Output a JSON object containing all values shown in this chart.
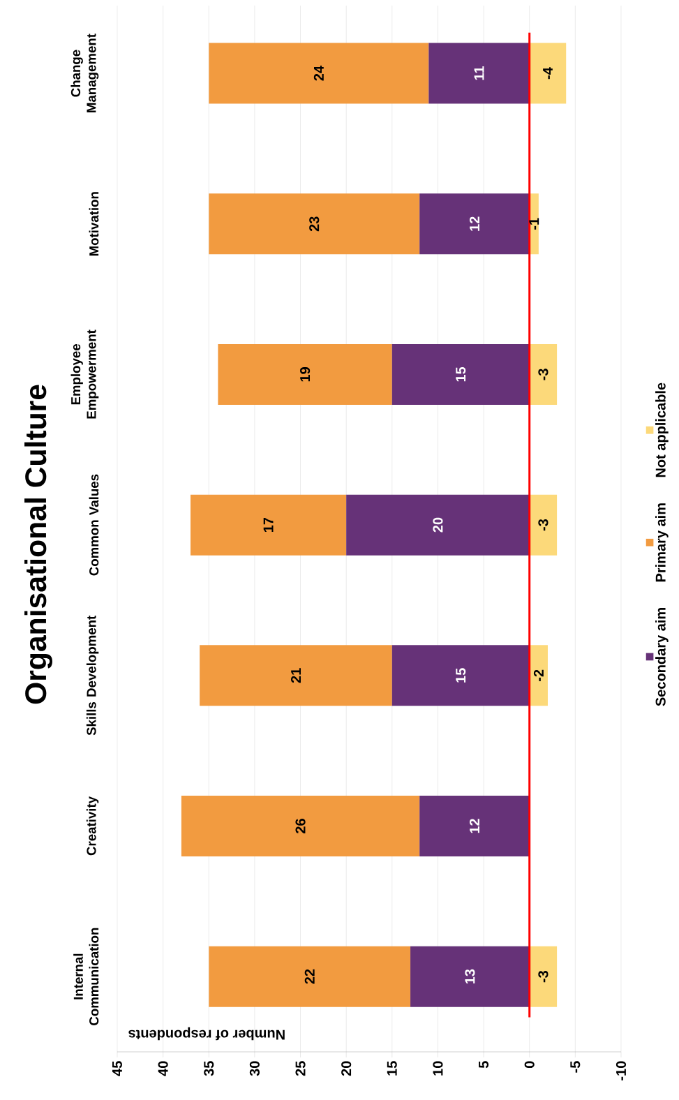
{
  "chart_data": {
    "type": "bar",
    "orientation": "horizontal",
    "title": "Organisational Culture",
    "xlabel": "Number of respondents",
    "categories": [
      "Change Management",
      "Motivation",
      "Employee Empowerment",
      "Common Values",
      "Skills Development",
      "Creativity",
      "Internal Communication"
    ],
    "series": [
      {
        "name": "Secondary aim",
        "color": "#663278",
        "values": [
          11,
          12,
          15,
          20,
          15,
          12,
          13
        ]
      },
      {
        "name": "Primary aim",
        "color": "#f29b40",
        "values": [
          24,
          23,
          19,
          17,
          21,
          26,
          22
        ]
      },
      {
        "name": "Not applicable",
        "color": "#fcd97a",
        "values": [
          -4,
          -1,
          -3,
          -3,
          -2,
          null,
          -3
        ]
      }
    ],
    "stacked": true,
    "data_labels": true,
    "xlim": [
      45,
      -10
    ],
    "xticks": [
      45,
      40,
      35,
      30,
      25,
      20,
      15,
      10,
      5,
      0,
      -5,
      -10
    ],
    "ref_lines": [
      {
        "axis": "x",
        "value": 0,
        "color": "#ff0000"
      }
    ],
    "grid": "x",
    "legend": "right"
  }
}
